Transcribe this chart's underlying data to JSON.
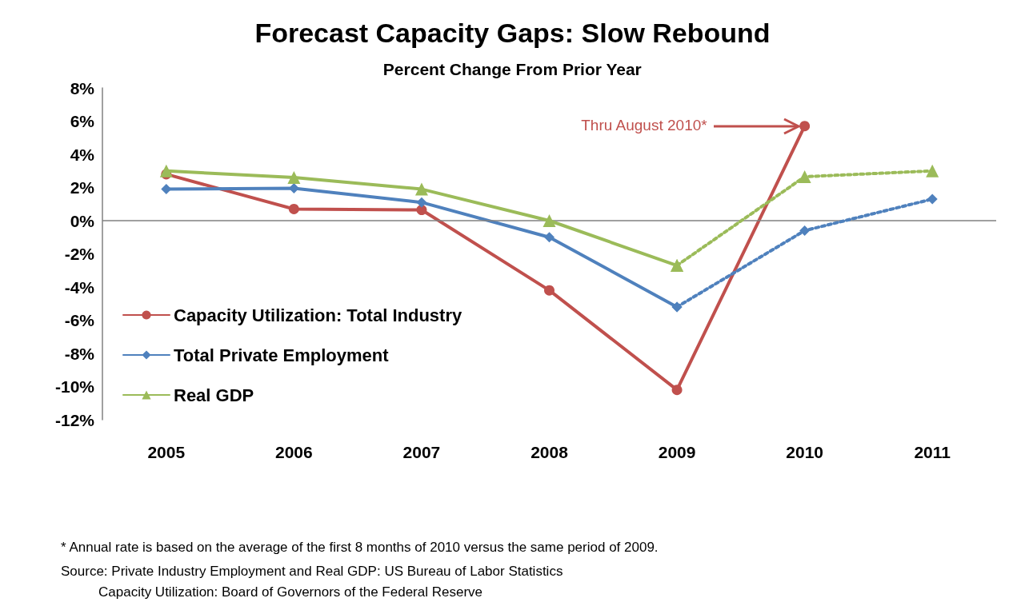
{
  "chart_data": {
    "type": "line",
    "title": "Forecast Capacity Gaps: Slow Rebound",
    "subtitle": "Percent Change From Prior Year",
    "categories": [
      "2005",
      "2006",
      "2007",
      "2008",
      "2009",
      "2010",
      "2011"
    ],
    "series": [
      {
        "name": "Capacity Utilization: Total Industry",
        "color": "#c0504d",
        "marker": "circle",
        "line_style": "solid",
        "values": [
          2.8,
          0.7,
          0.65,
          -4.2,
          -10.2,
          5.7,
          null
        ]
      },
      {
        "name": "Total Private Employment",
        "color": "#4f81bd",
        "marker": "diamond",
        "line_style": "solid",
        "values": [
          1.9,
          1.95,
          1.1,
          -1.0,
          -5.2,
          null,
          null
        ]
      },
      {
        "name": "Real GDP",
        "color": "#9bbb59",
        "marker": "triangle",
        "line_style": "solid",
        "values": [
          3.0,
          2.6,
          1.9,
          0.0,
          -2.7,
          null,
          null
        ]
      },
      {
        "color": "#4f81bd",
        "marker": "diamond",
        "line_style": "dotted",
        "values": [
          null,
          null,
          null,
          null,
          -5.2,
          -0.6,
          1.3
        ]
      },
      {
        "color": "#9bbb59",
        "marker": "triangle",
        "line_style": "dotted",
        "values": [
          null,
          null,
          null,
          null,
          -2.7,
          2.65,
          3.0
        ]
      }
    ],
    "ylim": [
      -12,
      8
    ],
    "yticks": [
      {
        "value": -12,
        "label": "-12%"
      },
      {
        "value": -10,
        "label": "-10%"
      },
      {
        "value": -8,
        "label": "-8%"
      },
      {
        "value": -6,
        "label": "-6%"
      },
      {
        "value": -4,
        "label": "-4%"
      },
      {
        "value": -2,
        "label": "-2%"
      },
      {
        "value": 0,
        "label": "0%"
      },
      {
        "value": 2,
        "label": "2%"
      },
      {
        "value": 4,
        "label": "4%"
      },
      {
        "value": 6,
        "label": "6%"
      },
      {
        "value": 8,
        "label": "8%"
      }
    ],
    "ref_lines": [
      {
        "axis": "y",
        "value": 0,
        "color": "#808080"
      }
    ],
    "grid": false,
    "legend": "left",
    "annotations": [
      {
        "text": "Thru August 2010*",
        "x": "2010",
        "y": 5.7
      },
      "* Annual rate is based on the average of the first 8 months of 2010 versus the same period of 2009.",
      "Source: Private Industry Employment and Real GDP: US Bureau of Labor Statistics",
      "Capacity Utilization: Board of Governors of the Federal Reserve"
    ]
  }
}
